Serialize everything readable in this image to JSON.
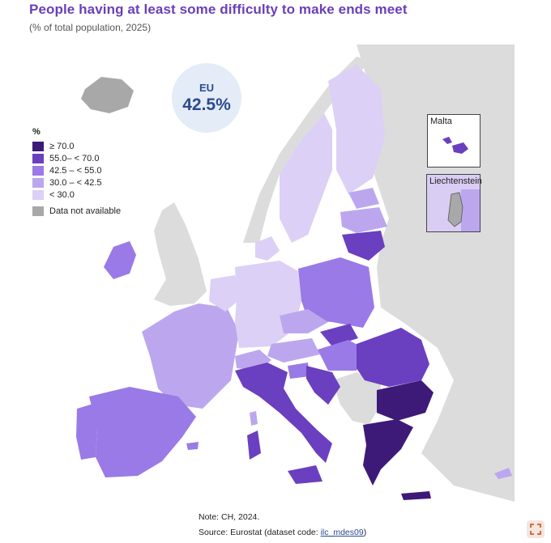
{
  "title": "People having at least some difficulty to make ends meet",
  "subtitle": "(% of total population, 2025)",
  "eu_badge": {
    "label": "EU",
    "value": "42.5%"
  },
  "legend": {
    "unit": "%",
    "classes": [
      {
        "label": "≥ 70.0",
        "color": "#3d1a78"
      },
      {
        "label": "55.0– < 70.0",
        "color": "#6a3fc0"
      },
      {
        "label": "42.5 – < 55.0",
        "color": "#9a7ae6"
      },
      {
        "label": "30.0 – < 42.5",
        "color": "#bca7ef"
      },
      {
        "label": "< 30.0",
        "color": "#dcd0f6"
      }
    ],
    "na": {
      "label": "Data not available",
      "color": "#a8a8a8"
    }
  },
  "insets": {
    "malta": "Malta",
    "liechtenstein": "Liechtenstein"
  },
  "note": "Note: CH, 2024.",
  "source_prefix": "Source: Eurostat (dataset code: ",
  "source_code": "ilc_mdes09",
  "source_suffix": ")",
  "colors": {
    "nonEU": "#dcdcdc",
    "na": "#a8a8a8",
    "c70": "#3d1a78",
    "c55": "#6a3fc0",
    "c42": "#9a7ae6",
    "c30": "#bca7ef",
    "c0": "#dcd0f6"
  }
}
